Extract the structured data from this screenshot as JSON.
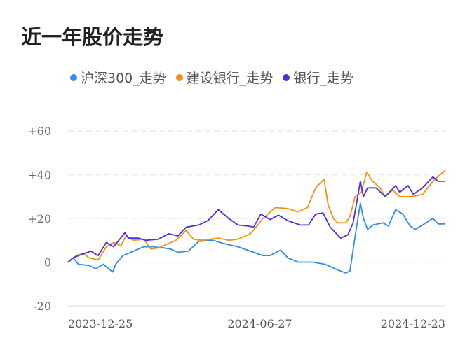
{
  "title": "近一年股价走势",
  "chart_data": {
    "type": "line",
    "title": "近一年股价走势",
    "xlabel": "",
    "ylabel": "",
    "ylim": [
      -20,
      60
    ],
    "yticks": [
      "+60",
      "+40",
      "+20",
      "0",
      "-20"
    ],
    "ytick_values": [
      60,
      40,
      20,
      0,
      -20
    ],
    "xlim_days": [
      0,
      364
    ],
    "xticks": [
      {
        "label": "2023-12-25",
        "day": 0
      },
      {
        "label": "2024-06-27",
        "day": 185
      },
      {
        "label": "2024-12-23",
        "day": 364
      }
    ],
    "grid": true,
    "legend_position": "top-left",
    "series": [
      {
        "name": "沪深300_走势",
        "color": "#2f8ee5",
        "x": [
          0,
          5,
          10,
          20,
          27,
          34,
          43,
          46,
          53,
          63,
          73,
          82,
          92,
          99,
          106,
          116,
          126,
          140,
          150,
          164,
          176,
          188,
          195,
          205,
          212,
          222,
          236,
          248,
          260,
          268,
          272,
          277,
          282,
          285,
          289,
          294,
          304,
          309,
          316,
          323,
          330,
          335,
          342,
          352,
          357,
          364
        ],
        "values": [
          0,
          2,
          -1,
          -1.5,
          -3,
          -1,
          -4.5,
          -1,
          3,
          5,
          7,
          7,
          6.5,
          6,
          4.5,
          5,
          9.5,
          10,
          8.5,
          7,
          5,
          3,
          3,
          5.5,
          2,
          0,
          0,
          -1,
          -3.5,
          -5,
          -4,
          12,
          27,
          20,
          15,
          17,
          18,
          16.5,
          24,
          22,
          16.5,
          15,
          17,
          20,
          17.5,
          17.5
        ]
      },
      {
        "name": "建设银行_走势",
        "color": "#f39212",
        "x": [
          0,
          8,
          15,
          20,
          29,
          37,
          44,
          51,
          56,
          63,
          73,
          80,
          87,
          97,
          104,
          114,
          121,
          130,
          145,
          155,
          164,
          176,
          183,
          188,
          200,
          212,
          222,
          231,
          239,
          247,
          251,
          256,
          260,
          268,
          272,
          277,
          283,
          288,
          294,
          301,
          306,
          313,
          320,
          332,
          342,
          352,
          359,
          364
        ],
        "values": [
          0,
          3,
          4,
          2,
          1,
          7,
          9,
          7.5,
          12,
          10,
          10.5,
          6,
          6.5,
          8.5,
          10,
          14.5,
          10.5,
          10,
          11,
          10,
          10.5,
          13,
          17,
          20,
          25,
          24.5,
          23,
          25,
          34,
          38,
          26,
          20,
          18,
          18,
          21,
          30,
          32,
          41,
          37,
          34,
          30,
          33,
          30,
          30,
          31,
          37,
          40,
          42
        ]
      },
      {
        "name": "银行_走势",
        "color": "#4f2de0",
        "x": [
          0,
          5,
          13,
          22,
          29,
          37,
          44,
          55,
          58,
          68,
          75,
          87,
          97,
          106,
          114,
          126,
          135,
          145,
          155,
          164,
          174,
          179,
          186,
          195,
          203,
          212,
          224,
          232,
          239,
          246,
          253,
          263,
          270,
          275,
          282,
          285,
          289,
          297,
          306,
          316,
          320,
          328,
          333,
          342,
          352,
          357,
          364
        ],
        "values": [
          0,
          2,
          3.5,
          5,
          3,
          9,
          7,
          13.5,
          11,
          11,
          10,
          10.5,
          13,
          12,
          16,
          17,
          19,
          24,
          20,
          17,
          16.5,
          16,
          22,
          19.5,
          21.5,
          19,
          17,
          17,
          22,
          22.5,
          16,
          11,
          12.5,
          18,
          37,
          30,
          34,
          34,
          30,
          35,
          32,
          35,
          31,
          34,
          39,
          37,
          37
        ]
      }
    ]
  }
}
